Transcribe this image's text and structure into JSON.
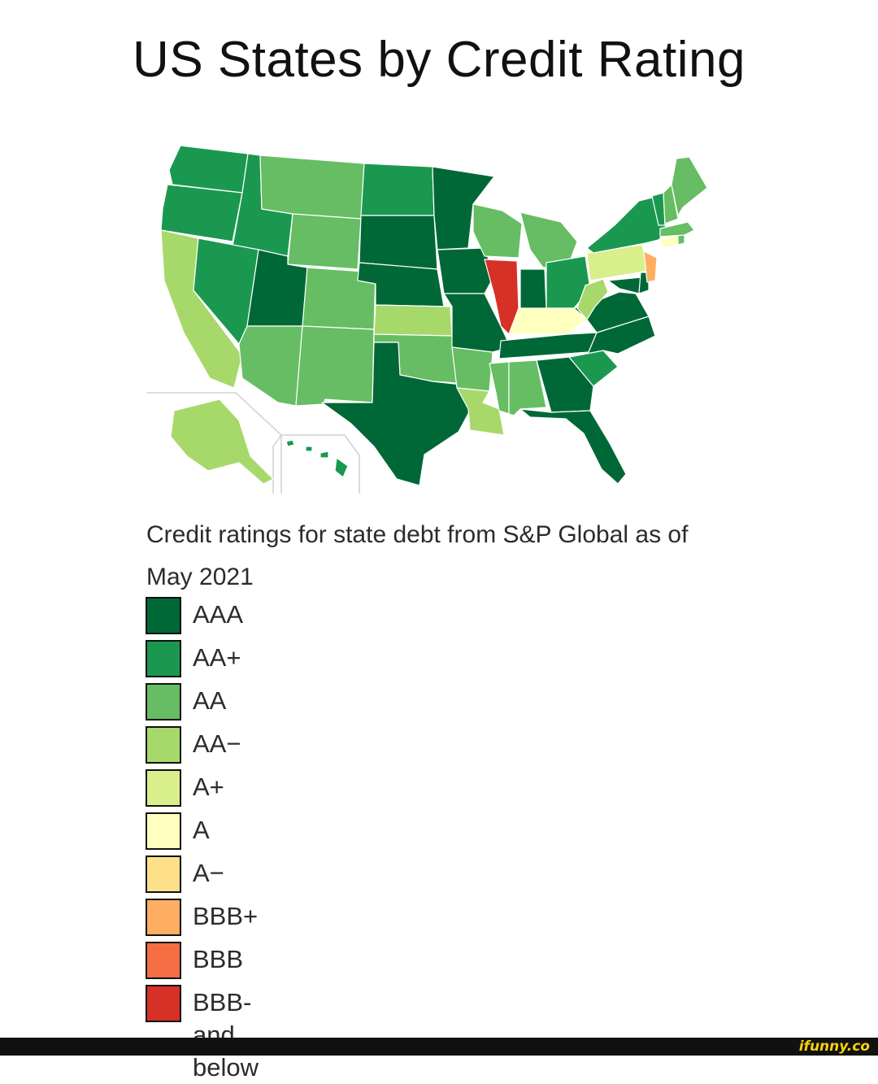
{
  "title": "US States by Credit Rating",
  "caption": "Credit ratings for state debt from S&P Global as of May 2021",
  "legend": [
    {
      "label": "AAA",
      "color": "#006837"
    },
    {
      "label": "AA+",
      "color": "#1a9850"
    },
    {
      "label": "AA",
      "color": "#66bd63"
    },
    {
      "label": "AA−",
      "color": "#a6d96a"
    },
    {
      "label": "A+",
      "color": "#d9ef8b"
    },
    {
      "label": "A",
      "color": "#ffffbf"
    },
    {
      "label": "A−",
      "color": "#fee08b"
    },
    {
      "label": "BBB+",
      "color": "#fdae61"
    },
    {
      "label": "BBB",
      "color": "#f46d43"
    },
    {
      "label": "BBB- and below",
      "color": "#d73027"
    }
  ],
  "ratings": {
    "WA": "AA+",
    "OR": "AA+",
    "CA": "AA−",
    "ID": "AA+",
    "NV": "AA+",
    "MT": "AA",
    "WY": "AA",
    "UT": "AAA",
    "AZ": "AA",
    "CO": "AA",
    "NM": "AA",
    "ND": "AA+",
    "SD": "AAA",
    "NE": "AAA",
    "KS": "AA−",
    "OK": "AA",
    "TX": "AAA",
    "MN": "AAA",
    "IA": "AAA",
    "MO": "AAA",
    "AR": "AA",
    "LA": "AA−",
    "WI": "AA",
    "IL": "BBB- and below",
    "MI": "AA",
    "IN": "AAA",
    "OH": "AA+",
    "KY": "A",
    "TN": "AAA",
    "MS": "AA",
    "AL": "AA",
    "GA": "AAA",
    "FL": "AAA",
    "SC": "AA+",
    "NC": "AAA",
    "VA": "AAA",
    "WV": "AA−",
    "MD": "AAA",
    "DE": "AAA",
    "PA": "A+",
    "NJ": "BBB+",
    "NY": "AA+",
    "CT": "A",
    "RI": "AA",
    "MA": "AA",
    "VT": "AA+",
    "NH": "AA",
    "ME": "AA",
    "AK": "AA−",
    "HI": "AA+"
  },
  "watermark": "ifunny.co"
}
